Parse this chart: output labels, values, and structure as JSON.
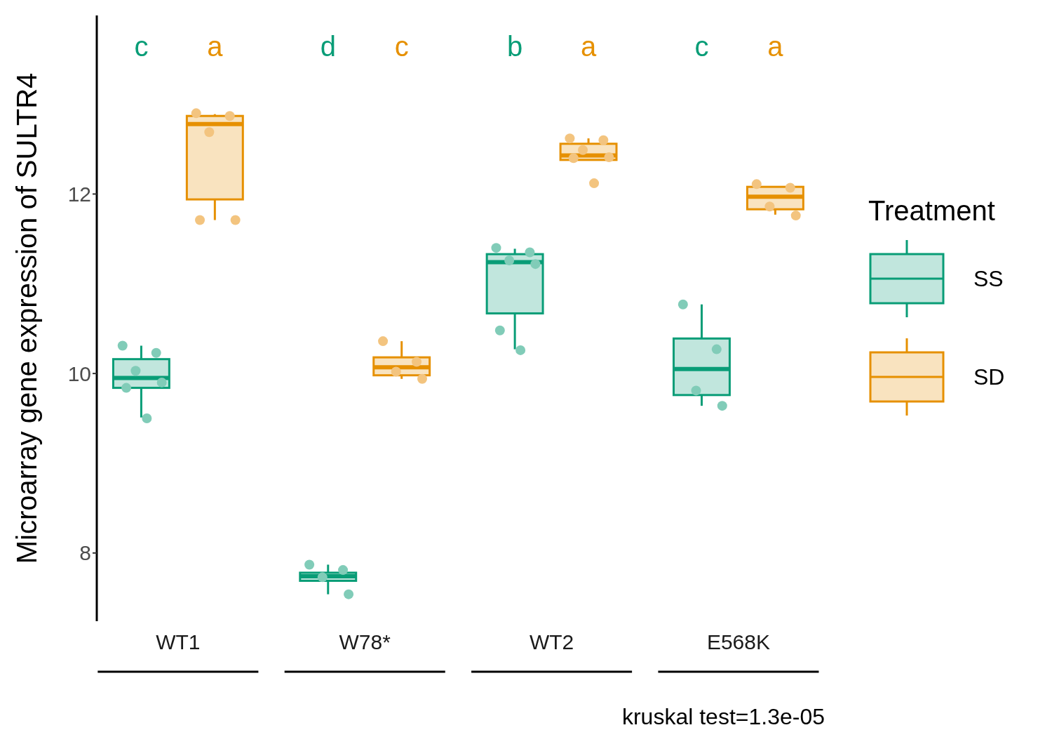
{
  "chart_data": {
    "type": "box",
    "ylabel": "Microarray gene expression of SULTR4",
    "legend_title": "Treatment",
    "legend": "right",
    "grid": false,
    "categories": [
      "WT1",
      "W78*",
      "WT2",
      "E568K"
    ],
    "ylim": [
      7.24,
      13.99
    ],
    "yticks": [
      8,
      10,
      12
    ],
    "series": [
      {
        "type": "box",
        "name": "SS",
        "color": "#099d77",
        "boxes": [
          {
            "low": 9.51,
            "q1": 9.84,
            "median": 9.95,
            "q3": 10.16,
            "high": 10.31
          },
          {
            "low": 7.54,
            "q1": 7.69,
            "median": 7.74,
            "q3": 7.78,
            "high": 7.87
          },
          {
            "low": 10.27,
            "q1": 10.67,
            "median": 11.24,
            "q3": 11.33,
            "high": 11.39
          },
          {
            "low": 9.64,
            "q1": 9.76,
            "median": 10.05,
            "q3": 10.39,
            "high": 10.77
          }
        ]
      },
      {
        "type": "box",
        "name": "SD",
        "color": "#e69000",
        "boxes": [
          {
            "low": 11.71,
            "q1": 11.94,
            "median": 12.78,
            "q3": 12.87,
            "high": 12.89
          },
          {
            "low": 9.94,
            "q1": 9.98,
            "median": 10.07,
            "q3": 10.18,
            "high": 10.36
          },
          {
            "low": 12.38,
            "q1": 12.38,
            "median": 12.43,
            "q3": 12.56,
            "high": 12.62
          },
          {
            "low": 11.77,
            "q1": 11.83,
            "median": 11.97,
            "q3": 12.08,
            "high": 12.08
          }
        ]
      },
      {
        "type": "scatter",
        "color": "#81ccb8",
        "marker": "circle",
        "x": [
          "WT1",
          "WT1",
          "WT1",
          "WT1",
          "WT1",
          "WT1",
          "W78*",
          "W78*",
          "W78*",
          "W78*",
          "WT2",
          "WT2",
          "WT2",
          "WT2",
          "WT2",
          "WT2",
          "E568K",
          "E568K",
          "E568K",
          "E568K"
        ],
        "values": [
          10.31,
          10.23,
          10.03,
          9.9,
          9.84,
          9.5,
          7.87,
          7.81,
          7.73,
          7.54,
          11.4,
          11.35,
          11.26,
          11.22,
          10.48,
          10.26,
          10.77,
          10.27,
          9.81,
          9.64
        ]
      },
      {
        "type": "scatter",
        "color": "#f3c47f",
        "marker": "circle",
        "x": [
          "WT1",
          "WT1",
          "WT1",
          "WT1",
          "WT1",
          "W78*",
          "W78*",
          "W78*",
          "W78*",
          "WT2",
          "WT2",
          "WT2",
          "WT2",
          "WT2",
          "WT2",
          "E568K",
          "E568K",
          "E568K",
          "E568K"
        ],
        "values": [
          12.9,
          12.87,
          12.69,
          11.71,
          11.71,
          10.36,
          10.13,
          10.02,
          9.94,
          12.62,
          12.6,
          12.49,
          12.41,
          12.4,
          12.12,
          12.11,
          12.07,
          11.86,
          11.76
        ]
      }
    ],
    "annotations": [
      "c",
      "a",
      "d",
      "c",
      "b",
      "a",
      "c",
      "a",
      "kruskal test=1.3e-05"
    ]
  }
}
